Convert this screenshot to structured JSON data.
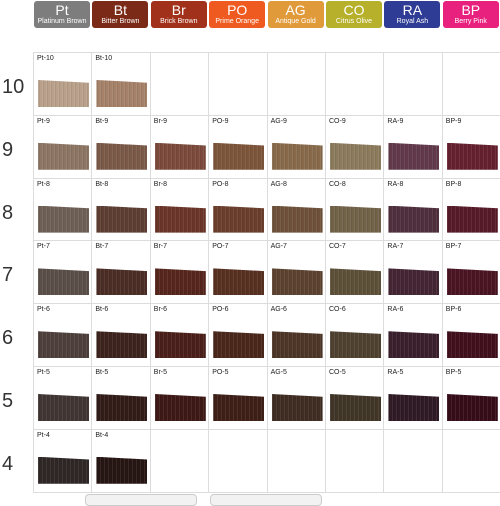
{
  "series": [
    {
      "code": "Pt",
      "name": "Platinum Brown",
      "color": "#7d7d7d"
    },
    {
      "code": "Bt",
      "name": "Bitter Brown",
      "color": "#7b2a17"
    },
    {
      "code": "Br",
      "name": "Brick Brown",
      "color": "#a1311a"
    },
    {
      "code": "PO",
      "name": "Prime Orange",
      "color": "#ee5a1f"
    },
    {
      "code": "AG",
      "name": "Antique Gold",
      "color": "#e19a39"
    },
    {
      "code": "CO",
      "name": "Citrus Olive",
      "color": "#b6b02a"
    },
    {
      "code": "RA",
      "name": "Royal Ash",
      "color": "#2f3c95"
    },
    {
      "code": "BP",
      "name": "Berry Pink",
      "color": "#e8217f"
    }
  ],
  "levels": [
    {
      "level": "10",
      "cells": [
        {
          "label": "Pt-10",
          "color": "#b9a08a"
        },
        {
          "label": "Bt-10",
          "color": "#a48168"
        },
        null,
        null,
        null,
        null,
        null,
        null
      ]
    },
    {
      "level": "9",
      "cells": [
        {
          "label": "Pt-9",
          "color": "#8c7563"
        },
        {
          "label": "Bt-9",
          "color": "#7a5948"
        },
        {
          "label": "Br-9",
          "color": "#7b4a3c"
        },
        {
          "label": "PO-9",
          "color": "#7c5439"
        },
        {
          "label": "AG-9",
          "color": "#886a4b"
        },
        {
          "label": "CO-9",
          "color": "#8b7b5c"
        },
        {
          "label": "RA-9",
          "color": "#61394a"
        },
        {
          "label": "BP-9",
          "color": "#65202e"
        }
      ]
    },
    {
      "level": "8",
      "cells": [
        {
          "label": "Pt-8",
          "color": "#6e5f56"
        },
        {
          "label": "Bt-8",
          "color": "#5e3e32"
        },
        {
          "label": "Br-8",
          "color": "#6a3528"
        },
        {
          "label": "PO-8",
          "color": "#6a3e2b"
        },
        {
          "label": "AG-8",
          "color": "#6e5138"
        },
        {
          "label": "CO-8",
          "color": "#716248"
        },
        {
          "label": "RA-8",
          "color": "#4f2f3d"
        },
        {
          "label": "BP-8",
          "color": "#561a28"
        }
      ]
    },
    {
      "level": "7",
      "cells": [
        {
          "label": "Pt-7",
          "color": "#5a4e48"
        },
        {
          "label": "Bt-7",
          "color": "#4a2d25"
        },
        {
          "label": "Br-7",
          "color": "#56261d"
        },
        {
          "label": "PO-7",
          "color": "#573021"
        },
        {
          "label": "AG-7",
          "color": "#5c4230"
        },
        {
          "label": "CO-7",
          "color": "#5d5038"
        },
        {
          "label": "RA-7",
          "color": "#442534"
        },
        {
          "label": "BP-7",
          "color": "#4a1422"
        }
      ]
    },
    {
      "level": "6",
      "cells": [
        {
          "label": "Pt-6",
          "color": "#4d3f3c"
        },
        {
          "label": "Bt-6",
          "color": "#3d231d"
        },
        {
          "label": "Br-6",
          "color": "#4a1f19"
        },
        {
          "label": "PO-6",
          "color": "#4a271b"
        },
        {
          "label": "AG-6",
          "color": "#4d3527"
        },
        {
          "label": "CO-6",
          "color": "#4e4130"
        },
        {
          "label": "RA-6",
          "color": "#3a1f2c"
        },
        {
          "label": "BP-6",
          "color": "#40101c"
        }
      ]
    },
    {
      "level": "5",
      "cells": [
        {
          "label": "Pt-5",
          "color": "#403533"
        },
        {
          "label": "Bt-5",
          "color": "#321c18"
        },
        {
          "label": "Br-5",
          "color": "#3d1815"
        },
        {
          "label": "PO-5",
          "color": "#3d1f17"
        },
        {
          "label": "AG-5",
          "color": "#3f2c22"
        },
        {
          "label": "CO-5",
          "color": "#403527"
        },
        {
          "label": "RA-5",
          "color": "#2f1a25"
        },
        {
          "label": "BP-5",
          "color": "#350c18"
        }
      ]
    },
    {
      "level": "4",
      "cells": [
        {
          "label": "Pt-4",
          "color": "#2e2726"
        },
        {
          "label": "Bt-4",
          "color": "#261613"
        },
        null,
        null,
        null,
        null,
        null,
        null
      ]
    }
  ]
}
